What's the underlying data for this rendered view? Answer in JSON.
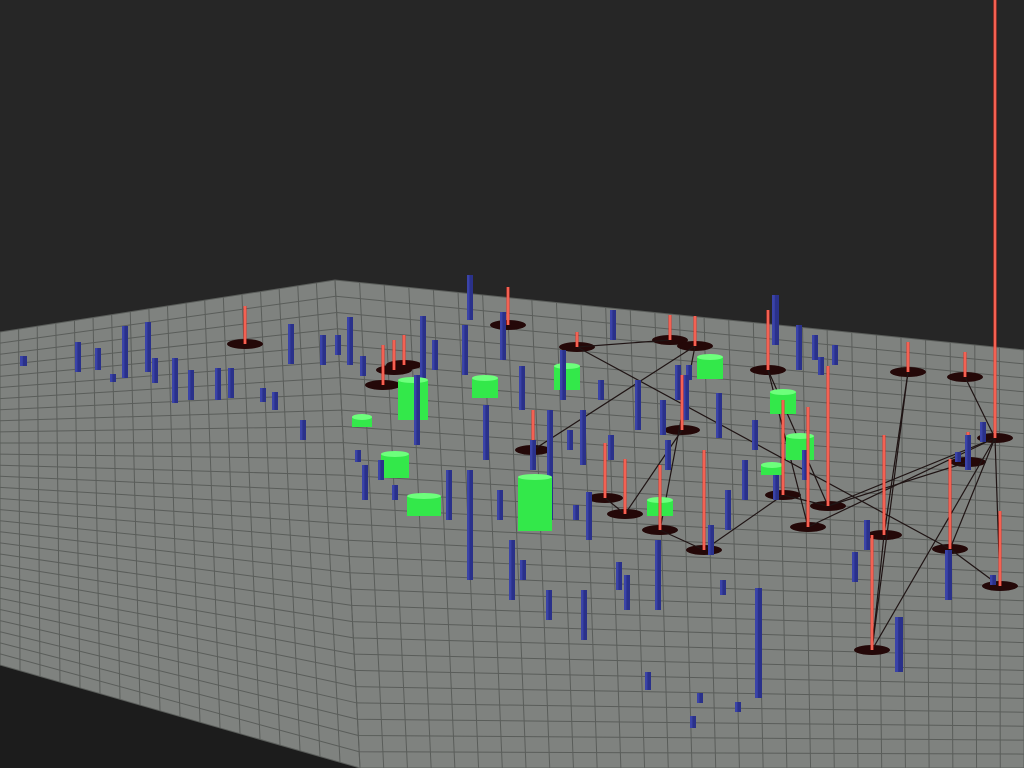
{
  "colors": {
    "background": "#262626",
    "floor": "#7f827f",
    "floor_dark": "#6e716e",
    "grid": "#5a5d5a",
    "blue_bar": "#2a318a",
    "blue_bar_light": "#3a43a8",
    "green_block": "#33e84a",
    "red_pole": "#e8382c",
    "red_pole_light": "#ff8a78",
    "shadow": "#240808",
    "link_line": "#1f1414"
  },
  "scene": {
    "type": "3d-bar-visualization",
    "objects": [
      "blue-bar",
      "green-block",
      "red-pole"
    ]
  }
}
